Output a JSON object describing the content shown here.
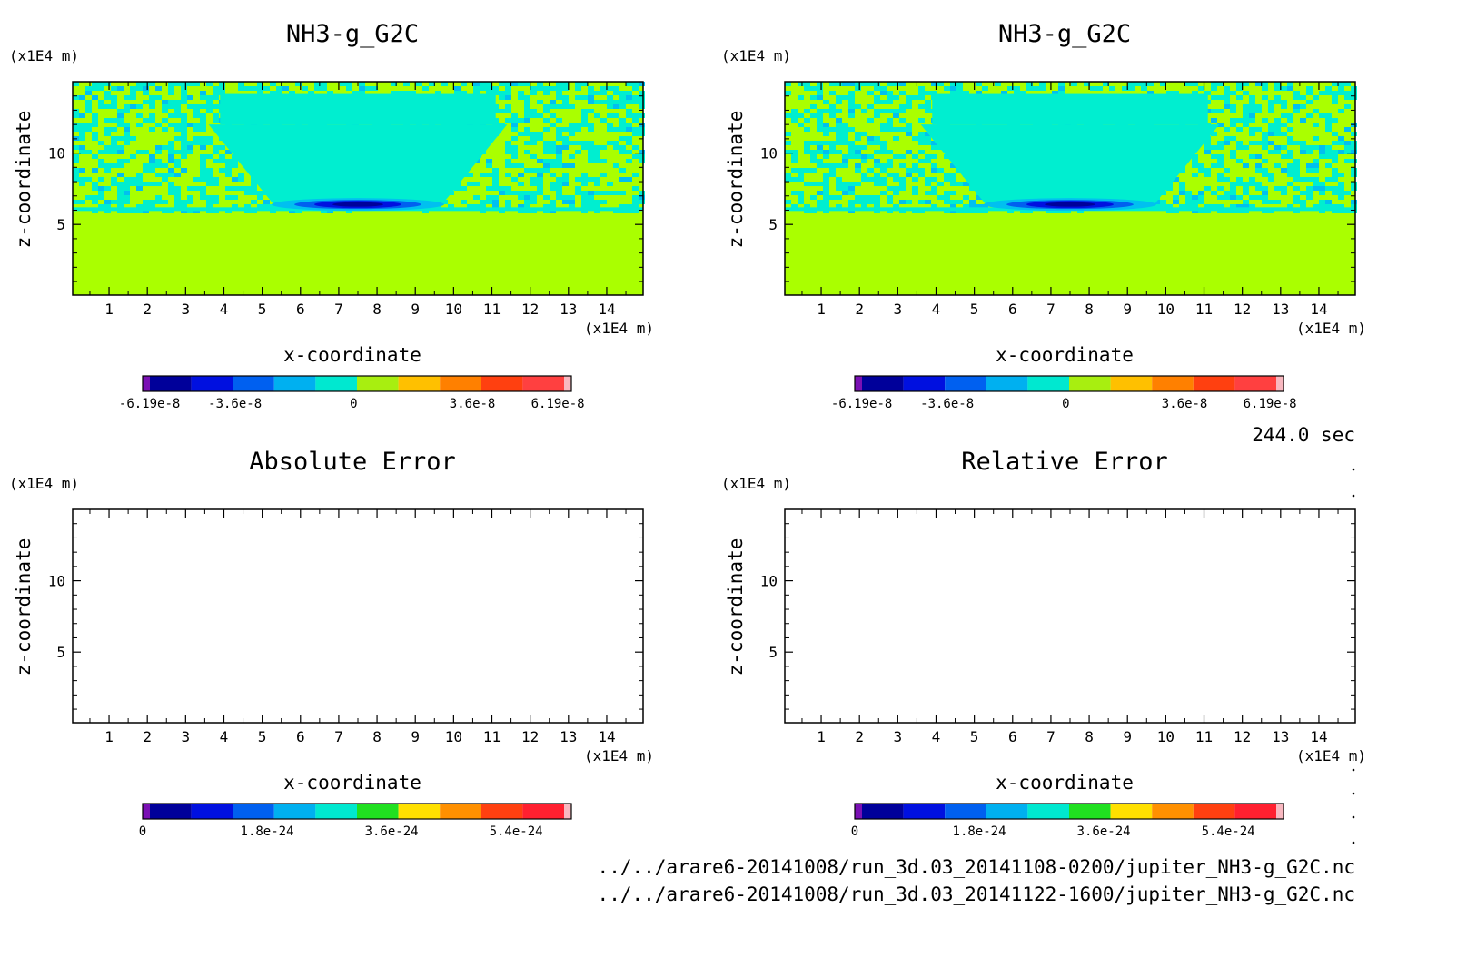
{
  "chart_data": [
    {
      "type": "heatmap",
      "title": "NH3-g_G2C",
      "xlabel": "x-coordinate",
      "ylabel": "z-coordinate",
      "x_unit": "(x1E4 m)",
      "y_unit": "(x1E4 m)",
      "xlim": [
        0.05,
        14.95
      ],
      "ylim": [
        0.05,
        15.0
      ],
      "x_ticks": [
        1,
        2,
        3,
        4,
        5,
        6,
        7,
        8,
        9,
        10,
        11,
        12,
        13,
        14
      ],
      "y_ticks": [
        5,
        10
      ],
      "colorbar": {
        "colors": [
          "#7a10b4",
          "#00009a",
          "#0010e0",
          "#0060f0",
          "#00b0f0",
          "#00e8d0",
          "#a8ee10",
          "#ffc000",
          "#ff8000",
          "#ff4010",
          "#ff4040",
          "#f8b8c0"
        ],
        "tick_labels": [
          "-6.19e-8",
          "-3.6e-8",
          "0",
          "3.6e-8",
          "6.19e-8"
        ],
        "tick_values": [
          -6.19e-08,
          -3.6e-08,
          0,
          3.6e-08,
          6.19e-08
        ],
        "range": [
          -6.4e-08,
          6.6e-08
        ]
      },
      "field": {
        "background": "#aaff00",
        "noise_top": 6.0,
        "trough": {
          "center_x": 7.5,
          "center_z": 6.4,
          "half_width": 3.0,
          "min_value": -6.19e-08
        }
      }
    },
    {
      "type": "heatmap",
      "title": "NH3-g_G2C",
      "xlabel": "x-coordinate",
      "ylabel": "z-coordinate",
      "x_unit": "(x1E4 m)",
      "y_unit": "(x1E4 m)",
      "xlim": [
        0.05,
        14.95
      ],
      "ylim": [
        0.05,
        15.0
      ],
      "x_ticks": [
        1,
        2,
        3,
        4,
        5,
        6,
        7,
        8,
        9,
        10,
        11,
        12,
        13,
        14
      ],
      "y_ticks": [
        5,
        10
      ],
      "colorbar": {
        "colors": [
          "#7a10b4",
          "#00009a",
          "#0010e0",
          "#0060f0",
          "#00b0f0",
          "#00e8d0",
          "#a8ee10",
          "#ffc000",
          "#ff8000",
          "#ff4010",
          "#ff4040",
          "#f8b8c0"
        ],
        "tick_labels": [
          "-6.19e-8",
          "-3.6e-8",
          "0",
          "3.6e-8",
          "6.19e-8"
        ],
        "tick_values": [
          -6.19e-08,
          -3.6e-08,
          0,
          3.6e-08,
          6.19e-08
        ],
        "range": [
          -6.4e-08,
          6.6e-08
        ]
      },
      "field": {
        "background": "#aaff00",
        "noise_top": 6.0,
        "trough": {
          "center_x": 7.5,
          "center_z": 6.4,
          "half_width": 3.0,
          "min_value": -6.19e-08
        }
      }
    },
    {
      "type": "heatmap",
      "title": "Absolute Error",
      "xlabel": "x-coordinate",
      "ylabel": "z-coordinate",
      "x_unit": "(x1E4 m)",
      "y_unit": "(x1E4 m)",
      "xlim": [
        0.05,
        14.95
      ],
      "ylim": [
        0.05,
        15.0
      ],
      "x_ticks": [
        1,
        2,
        3,
        4,
        5,
        6,
        7,
        8,
        9,
        10,
        11,
        12,
        13,
        14
      ],
      "y_ticks": [
        5,
        10
      ],
      "colorbar": {
        "colors": [
          "#7a10b4",
          "#00009a",
          "#0010e0",
          "#0060f0",
          "#00b0f0",
          "#00e8d0",
          "#20e020",
          "#ffe000",
          "#ff9000",
          "#ff4010",
          "#ff2030",
          "#f8b8c0"
        ],
        "tick_labels": [
          "0",
          "1.8e-24",
          "3.6e-24",
          "5.4e-24"
        ],
        "tick_values": [
          0,
          1.8e-24,
          3.6e-24,
          5.4e-24
        ],
        "range": [
          0,
          6.2e-24
        ]
      },
      "field": null
    },
    {
      "type": "heatmap",
      "title": "Relative Error",
      "xlabel": "x-coordinate",
      "ylabel": "z-coordinate",
      "x_unit": "(x1E4 m)",
      "y_unit": "(x1E4 m)",
      "xlim": [
        0.05,
        14.95
      ],
      "ylim": [
        0.05,
        15.0
      ],
      "x_ticks": [
        1,
        2,
        3,
        4,
        5,
        6,
        7,
        8,
        9,
        10,
        11,
        12,
        13,
        14
      ],
      "y_ticks": [
        5,
        10
      ],
      "colorbar": {
        "colors": [
          "#7a10b4",
          "#00009a",
          "#0010e0",
          "#0060f0",
          "#00b0f0",
          "#00e8d0",
          "#20e020",
          "#ffe000",
          "#ff9000",
          "#ff4010",
          "#ff2030",
          "#f8b8c0"
        ],
        "tick_labels": [
          "0",
          "1.8e-24",
          "3.6e-24",
          "5.4e-24"
        ],
        "tick_values": [
          0,
          1.8e-24,
          3.6e-24,
          5.4e-24
        ],
        "range": [
          0,
          6.2e-24
        ]
      },
      "field": null
    }
  ],
  "time_label": "244.0 sec",
  "footer": {
    "file1": "../../arare6-20141008/run_3d.03_20141108-0200/jupiter_NH3-g_G2C.nc",
    "file2": "../../arare6-20141008/run_3d.03_20141122-1600/jupiter_NH3-g_G2C.nc"
  }
}
